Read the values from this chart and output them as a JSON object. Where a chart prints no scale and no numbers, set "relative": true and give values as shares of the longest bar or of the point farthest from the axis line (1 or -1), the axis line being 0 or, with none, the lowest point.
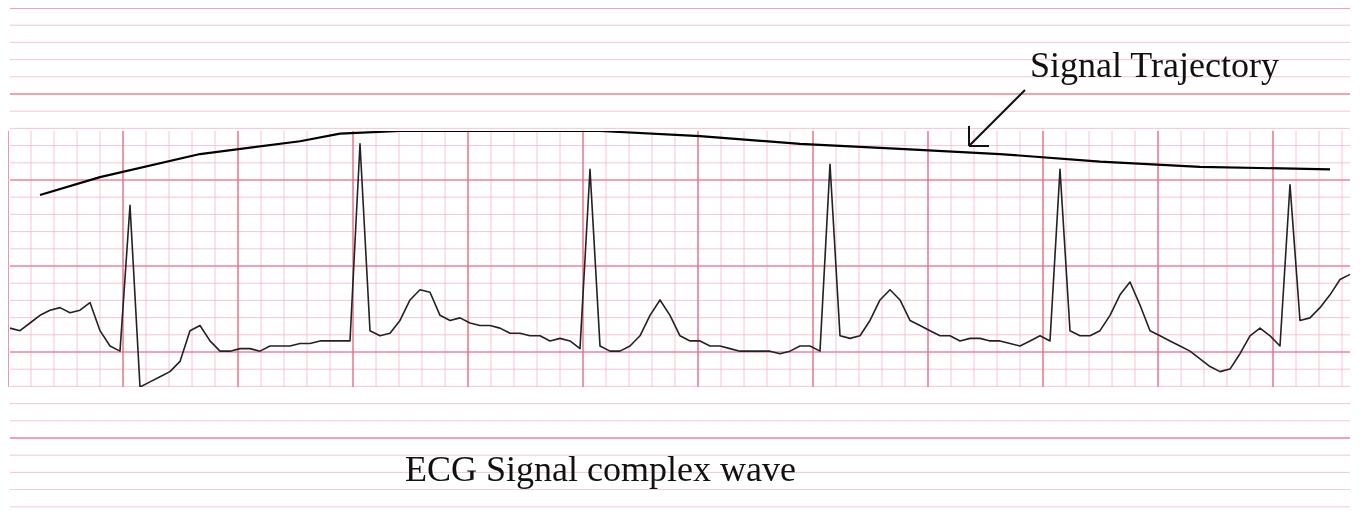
{
  "chart_data": {
    "type": "line",
    "relative": true,
    "grid": true,
    "marker": "none",
    "line_style": "solid",
    "annotations": [
      "Signal Trajectory",
      "ECG Signal complex wave"
    ],
    "categories": [
      null,
      null,
      null,
      null,
      null,
      null,
      null,
      null,
      null,
      null,
      null,
      null,
      null,
      null,
      null,
      null,
      null,
      null,
      null,
      null,
      null,
      null,
      null,
      null,
      null,
      null,
      null,
      null,
      null,
      null,
      null,
      null,
      null,
      null,
      null,
      null,
      null,
      null,
      null,
      null,
      null,
      null,
      null,
      null,
      null,
      null,
      null,
      null,
      null,
      null,
      null,
      null,
      null,
      null,
      null,
      null,
      null,
      null,
      null,
      null,
      null,
      null,
      null,
      null,
      null,
      null,
      null,
      null,
      null,
      null,
      null,
      null,
      null,
      null,
      null,
      null,
      null,
      null,
      null,
      null,
      null,
      null,
      null,
      null,
      null,
      null,
      null,
      null,
      null,
      null,
      null,
      null,
      null,
      null,
      null,
      null,
      null,
      null,
      null,
      null,
      null,
      null,
      null,
      null,
      null,
      null,
      null,
      null,
      null,
      null,
      null,
      null,
      null,
      null,
      null,
      null,
      null,
      null,
      null,
      null,
      null,
      null,
      null,
      null,
      null,
      null,
      null,
      null,
      null,
      null,
      null,
      null,
      null,
      null,
      null
    ],
    "series": [
      {
        "color": "#222222",
        "values": [
          0.23,
          0.22,
          0.25,
          0.28,
          0.3,
          0.31,
          0.29,
          0.3,
          0.33,
          0.22,
          0.16,
          0.14,
          0.71,
          0,
          0.02,
          0.04,
          0.06,
          0.1,
          0.22,
          0.24,
          0.18,
          0.14,
          0.14,
          0.15,
          0.15,
          0.14,
          0.16,
          0.16,
          0.16,
          0.17,
          0.17,
          0.18,
          0.18,
          0.18,
          0.18,
          0.95,
          0.22,
          0.2,
          0.21,
          0.26,
          0.34,
          0.38,
          0.37,
          0.28,
          0.26,
          0.27,
          0.25,
          0.24,
          0.24,
          0.23,
          0.21,
          0.21,
          0.2,
          0.2,
          0.18,
          0.19,
          0.18,
          0.15,
          0.85,
          0.16,
          0.14,
          0.14,
          0.16,
          0.2,
          0.28,
          0.34,
          0.28,
          0.2,
          0.18,
          0.18,
          0.16,
          0.16,
          0.15,
          0.14,
          0.14,
          0.14,
          0.14,
          0.13,
          0.14,
          0.16,
          0.16,
          0.14,
          0.87,
          0.2,
          0.19,
          0.2,
          0.26,
          0.34,
          0.38,
          0.34,
          0.26,
          0.24,
          0.22,
          0.2,
          0.2,
          0.18,
          0.19,
          0.19,
          0.18,
          0.18,
          0.17,
          0.16,
          0.18,
          0.2,
          0.18,
          0.85,
          0.22,
          0.2,
          0.2,
          0.22,
          0.28,
          0.36,
          0.41,
          0.32,
          0.22,
          0.2,
          0.18,
          0.16,
          0.14,
          0.11,
          0.08,
          0.06,
          0.07,
          0.13,
          0.2,
          0.23,
          0.2,
          0.16,
          0.79,
          0.26,
          0.27,
          0.31,
          0.36,
          0.42,
          0.44
        ]
      },
      {
        "color": "#000000",
        "values": [
          null,
          null,
          null,
          0.75,
          null,
          null,
          null,
          null,
          null,
          0.82,
          null,
          null,
          null,
          null,
          null,
          null,
          null,
          null,
          null,
          0.91,
          null,
          null,
          null,
          null,
          null,
          null,
          null,
          null,
          null,
          0.96,
          null,
          null,
          null,
          0.99,
          null,
          null,
          null,
          null,
          null,
          1,
          null,
          null,
          null,
          null,
          null,
          null,
          null,
          null,
          null,
          null,
          null,
          null,
          null,
          null,
          null,
          null,
          null,
          null,
          null,
          1,
          null,
          null,
          null,
          null,
          null,
          null,
          null,
          null,
          null,
          0.98,
          null,
          null,
          null,
          null,
          null,
          null,
          null,
          null,
          null,
          0.95,
          null,
          null,
          null,
          null,
          null,
          null,
          null,
          null,
          null,
          0.93,
          null,
          null,
          null,
          null,
          null,
          null,
          null,
          null,
          null,
          0.91,
          null,
          null,
          null,
          null,
          null,
          null,
          null,
          null,
          null,
          0.88,
          null,
          null,
          null,
          null,
          null,
          null,
          null,
          null,
          null,
          0.86,
          null,
          null,
          null,
          null,
          null,
          null,
          null,
          null,
          null,
          null,
          null,
          null,
          0.85,
          null,
          null
        ]
      }
    ]
  }
}
